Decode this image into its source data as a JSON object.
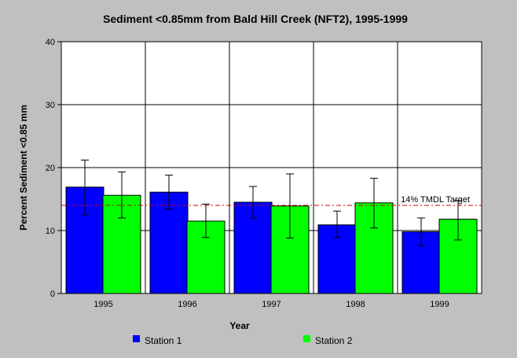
{
  "chart_data": {
    "type": "bar",
    "title": "Sediment <0.85mm from Bald Hill Creek (NFT2), 1995-1999",
    "xlabel": "Year",
    "ylabel": "Percent Sediment <0.85 mm",
    "ylim": [
      0,
      40
    ],
    "yticks": [
      "0",
      "10",
      "20",
      "30",
      "40"
    ],
    "categories": [
      "1995",
      "1996",
      "1997",
      "1998",
      "1999"
    ],
    "grid": true,
    "legend_position": "bottom",
    "series": [
      {
        "name": "Station 1",
        "color": "#0000ff",
        "values": [
          16.9,
          16.1,
          14.5,
          10.9,
          9.8
        ],
        "err_low": [
          12.5,
          13.4,
          12.0,
          8.9,
          7.6
        ],
        "err_high": [
          21.2,
          18.8,
          17.0,
          13.1,
          12.0
        ]
      },
      {
        "name": "Station 2",
        "color": "#00ff00",
        "values": [
          15.6,
          11.5,
          13.9,
          14.4,
          11.8
        ],
        "err_low": [
          12.0,
          8.9,
          8.8,
          10.4,
          8.5
        ],
        "err_high": [
          19.3,
          14.2,
          19.0,
          18.3,
          14.8
        ]
      }
    ],
    "reference_line": {
      "value": 14,
      "label": "14% TMDL Target",
      "color": "#cc0000"
    }
  }
}
